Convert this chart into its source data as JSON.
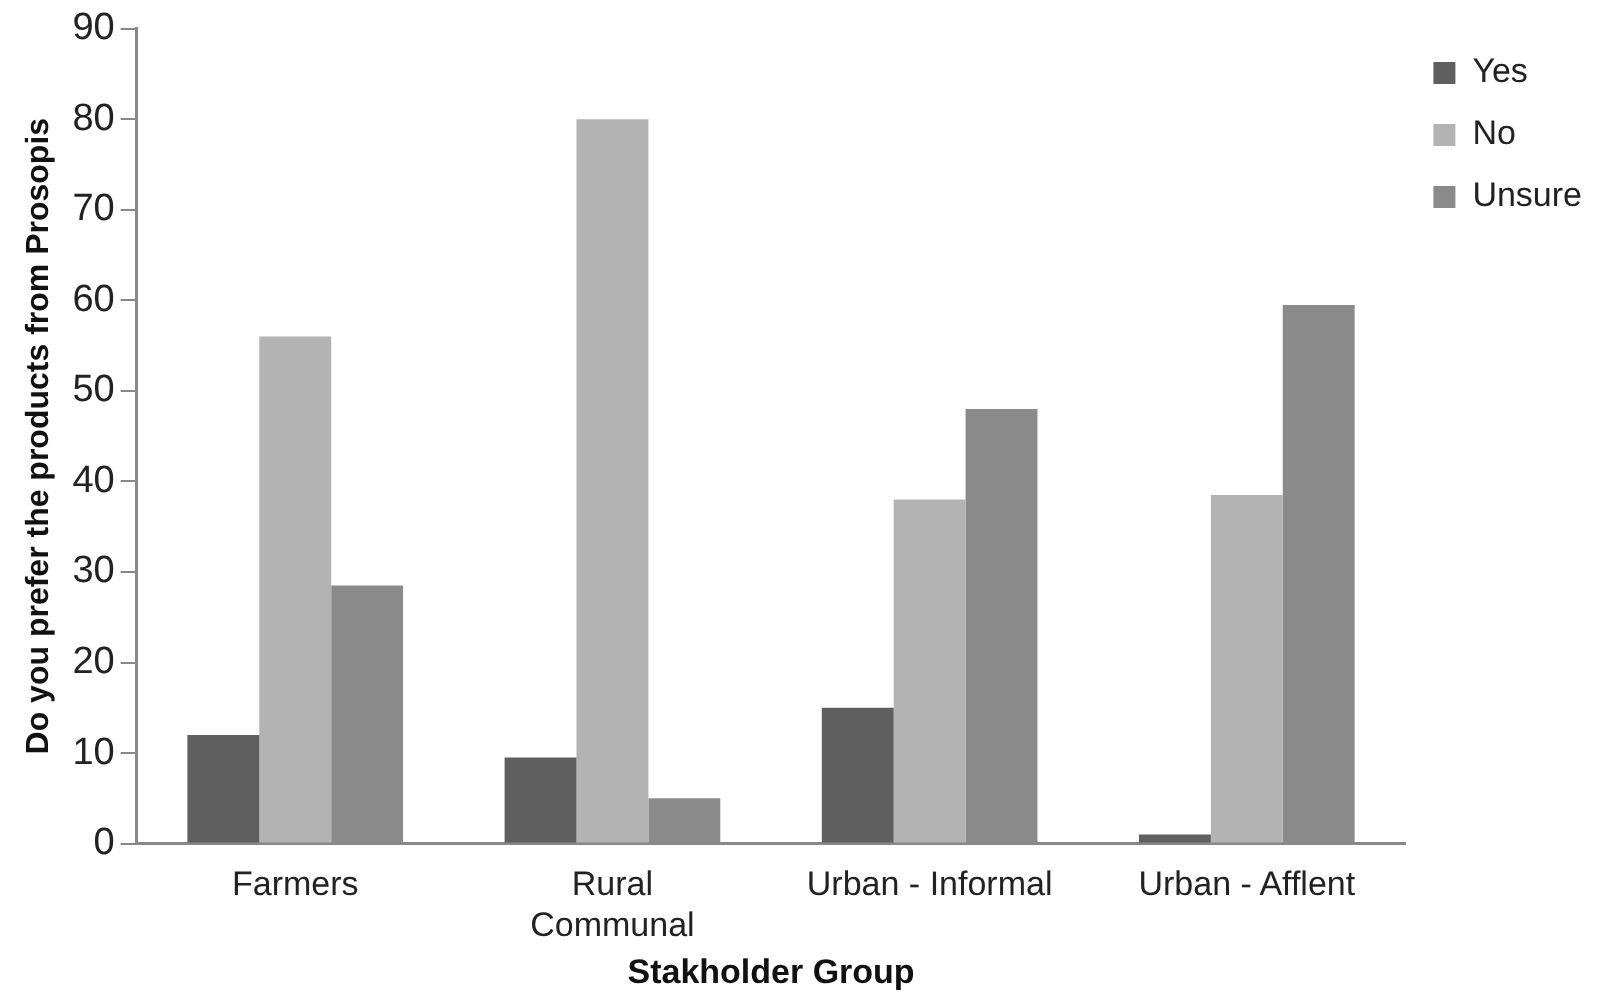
{
  "chart_data": {
    "type": "bar",
    "xlabel": "Stakholder Group",
    "ylabel": "Do you prefer the products from Prosopis",
    "categories": [
      "Farmers",
      "Rural Communal",
      "Urban - Informal",
      "Urban - Afflent"
    ],
    "series": [
      {
        "name": "Yes",
        "color": "#5f5f5f",
        "values": [
          12,
          9.5,
          15,
          1
        ]
      },
      {
        "name": "No",
        "color": "#b3b3b3",
        "values": [
          56,
          80,
          38,
          38.5
        ]
      },
      {
        "name": "Unsure",
        "color": "#8a8a8a",
        "values": [
          28.5,
          5,
          48,
          59.5
        ]
      }
    ],
    "ylim": [
      0,
      90
    ],
    "yticks": [
      0,
      10,
      20,
      30,
      40,
      50,
      60,
      70,
      80,
      90
    ],
    "grid": false,
    "legend": "top right"
  }
}
